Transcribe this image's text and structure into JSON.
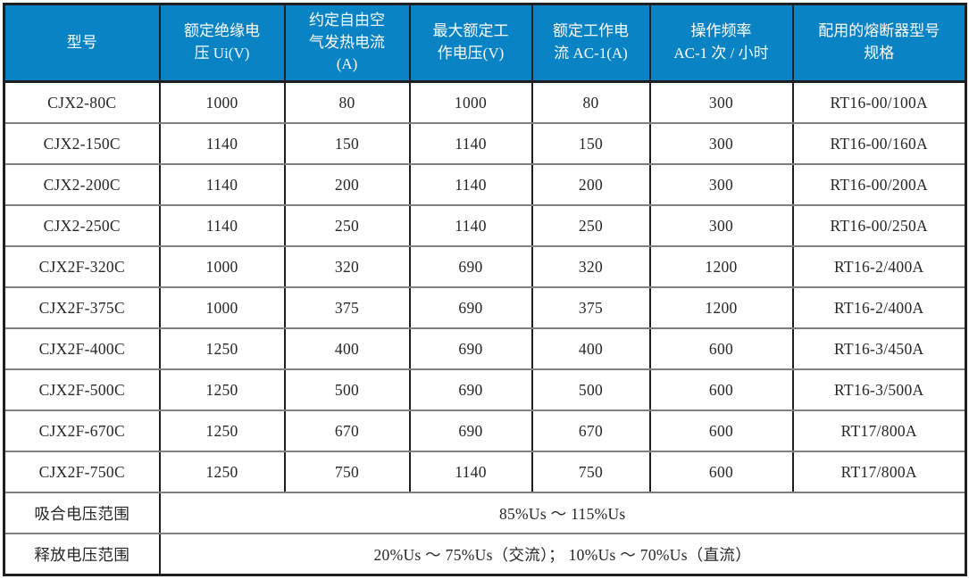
{
  "colors": {
    "header_bg": "#0a83c5",
    "header_text": "#ffffff",
    "body_text": "#262626",
    "grid_vertical": "#1f1f1f",
    "grid_horizontal": "#808080",
    "row_bg": "#ffffff"
  },
  "chart_data": {
    "type": "table",
    "columns": [
      "型号",
      "额定绝缘电\n压 Ui(V)",
      "约定自由空\n气发热电流\n(A)",
      "最大额定工\n作电压(V)",
      "额定工作电\n流 AC-1(A)",
      "操作频率\nAC-1 次 / 小时",
      "配用的熔断器型号\n规格"
    ],
    "rows": [
      [
        "CJX2-80C",
        "1000",
        "80",
        "1000",
        "80",
        "300",
        "RT16-00/100A"
      ],
      [
        "CJX2-150C",
        "1140",
        "150",
        "1140",
        "150",
        "300",
        "RT16-00/160A"
      ],
      [
        "CJX2-200C",
        "1140",
        "200",
        "1140",
        "200",
        "300",
        "RT16-00/200A"
      ],
      [
        "CJX2-250C",
        "1140",
        "250",
        "1140",
        "250",
        "300",
        "RT16-00/250A"
      ],
      [
        "CJX2F-320C",
        "1000",
        "320",
        "690",
        "320",
        "1200",
        "RT16-2/400A"
      ],
      [
        "CJX2F-375C",
        "1000",
        "375",
        "690",
        "375",
        "1200",
        "RT16-2/400A"
      ],
      [
        "CJX2F-400C",
        "1250",
        "400",
        "690",
        "400",
        "600",
        "RT16-3/450A"
      ],
      [
        "CJX2F-500C",
        "1250",
        "500",
        "690",
        "500",
        "600",
        "RT16-3/500A"
      ],
      [
        "CJX2F-670C",
        "1250",
        "670",
        "690",
        "670",
        "600",
        "RT17/800A"
      ],
      [
        "CJX2F-750C",
        "1250",
        "750",
        "1140",
        "750",
        "600",
        "RT17/800A"
      ]
    ],
    "footer_rows": [
      [
        "吸合电压范围",
        "85%Us ～ 115%Us"
      ],
      [
        "释放电压范围",
        "20%Us ～ 75%Us（交流）； 10%Us ～ 70%Us（直流）"
      ]
    ]
  }
}
